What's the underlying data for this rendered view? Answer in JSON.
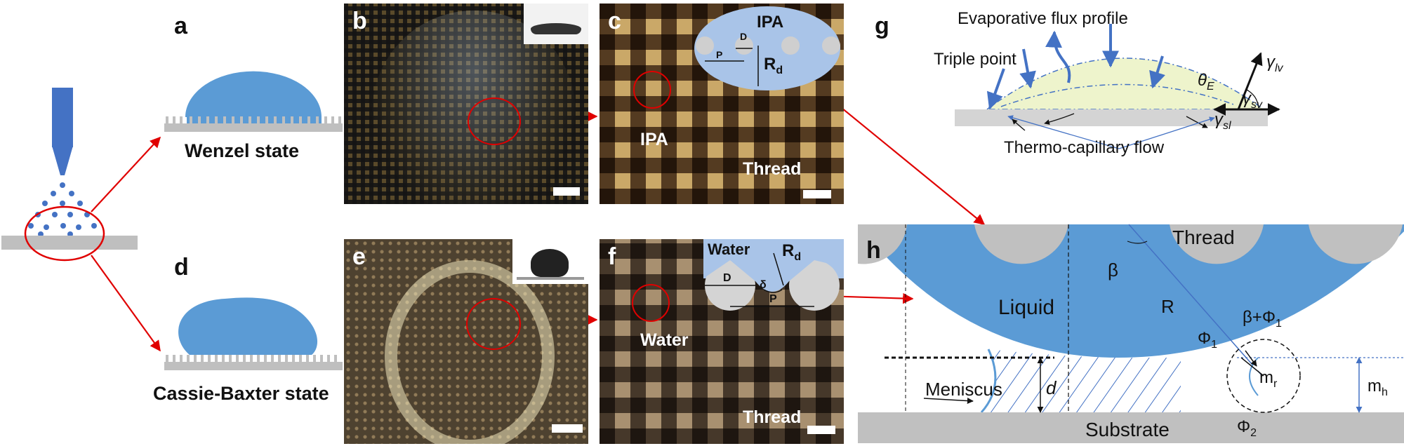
{
  "panels": {
    "a": {
      "letter": "a",
      "label": "Wenzel state"
    },
    "b": {
      "letter": "b"
    },
    "c": {
      "letter": "c",
      "inset_title": "IPA",
      "labels": {
        "D": "D",
        "P": "P",
        "Rd": "R",
        "Rd_sub": "d",
        "ipa": "IPA",
        "thread": "Thread"
      }
    },
    "d": {
      "letter": "d",
      "label": "Cassie-Baxter state"
    },
    "e": {
      "letter": "e"
    },
    "f": {
      "letter": "f",
      "inset_title": "Water",
      "labels": {
        "D": "D",
        "P": "P",
        "delta": "δ",
        "Rd": "R",
        "Rd_sub": "d",
        "water": "Water",
        "thread": "Thread"
      }
    },
    "g": {
      "letter": "g",
      "evap": "Evaporative flux profile",
      "triple": "Triple point",
      "theta": "θ",
      "theta_sub": "E",
      "gamma": "γ",
      "g_lv": "lv",
      "g_sv": "sv",
      "g_sl": "sl",
      "thermo": "Thermo-capillary flow"
    },
    "h": {
      "letter": "h",
      "thread": "Thread",
      "liquid": "Liquid",
      "beta": "β",
      "R": "R",
      "beta_phi": "β+Φ",
      "phi_sub": "1",
      "phi1": "Φ",
      "meniscus": "Meniscus",
      "d": "d",
      "m": "m",
      "m_r_sub": "r",
      "m_h_sub": "h",
      "phi2": "Φ",
      "phi2_sub": "2",
      "substrate": "Substrate"
    }
  },
  "colors": {
    "liquid": "#5b9bd5",
    "substrate": "#bfbfbf",
    "arrow": "#e00000",
    "inset": "#a9c4e8",
    "glow": "#eef4cc",
    "arrow_blue": "#4472c4"
  }
}
